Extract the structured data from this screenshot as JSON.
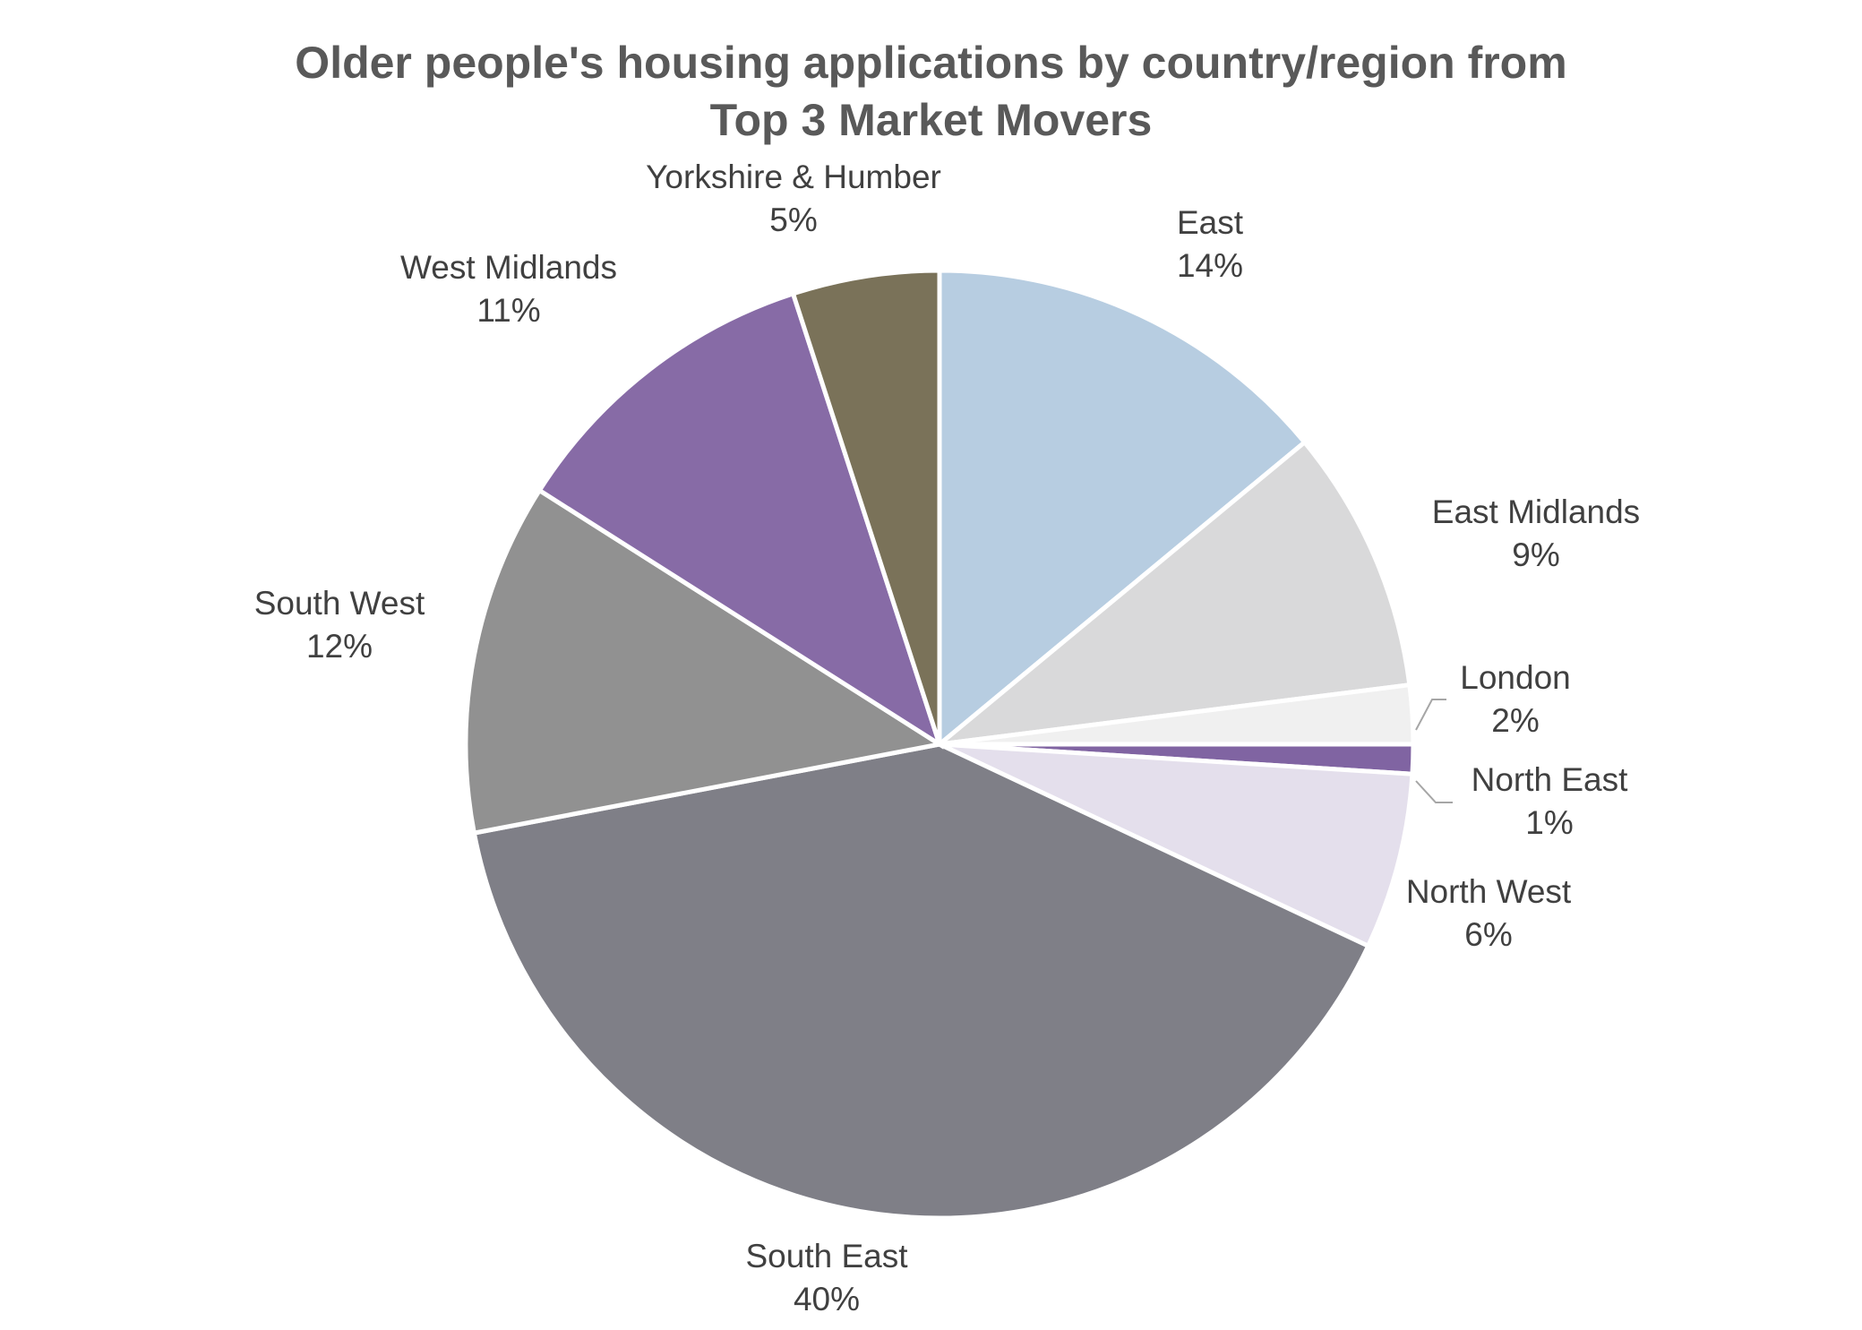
{
  "chart_data": {
    "type": "pie",
    "title": "Older people's housing applications by country/region from Top 3 Market Movers",
    "categories": [
      "East",
      "East Midlands",
      "London",
      "North East",
      "North West",
      "South East",
      "South West",
      "West Midlands",
      "Yorkshire & Humber"
    ],
    "values": [
      14,
      9,
      2,
      1,
      6,
      40,
      12,
      11,
      5
    ],
    "value_labels": [
      "14%",
      "9%",
      "2%",
      "1%",
      "6%",
      "40%",
      "12%",
      "11%",
      "5%"
    ],
    "colors": [
      "#b7cde1",
      "#d9d9da",
      "#f0f0f0",
      "#8064a2",
      "#e4dfec",
      "#7f7f87",
      "#919191",
      "#876ba6",
      "#7a7259"
    ]
  }
}
